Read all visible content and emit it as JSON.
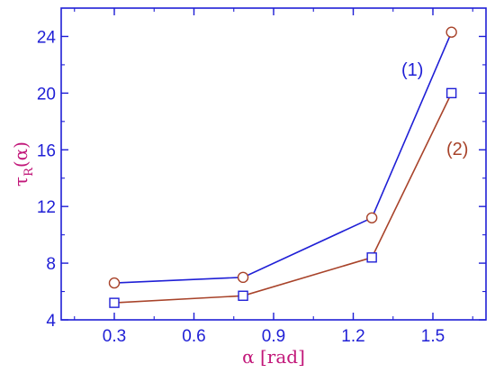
{
  "chart_data": {
    "type": "line",
    "title": "",
    "xlabel": "α [rad]",
    "ylabel": {
      "main": "τ",
      "subscript": "R",
      "argument": "(α)"
    },
    "xlim": [
      0.1,
      1.7
    ],
    "ylim": [
      4,
      26
    ],
    "x_ticks": [
      0.3,
      0.6,
      0.9,
      1.2,
      1.5
    ],
    "x_tick_labels": [
      "0.3",
      "0.6",
      "0.9",
      "1.2",
      "1.5"
    ],
    "y_ticks": [
      4,
      8,
      12,
      16,
      20,
      24
    ],
    "y_tick_labels": [
      "4",
      "8",
      "12",
      "16",
      "20",
      "24"
    ],
    "grid": false,
    "colors": {
      "axis": "#1f1fd6",
      "ylabel": "#c2187a"
    },
    "series": [
      {
        "name": "(1)",
        "line_color": "#1f1fd6",
        "marker": "circle",
        "marker_color": "#a8432a",
        "x": [
          0.3,
          0.785,
          1.27,
          1.57
        ],
        "y": [
          6.6,
          7.0,
          11.2,
          24.3
        ]
      },
      {
        "name": "(2)",
        "line_color": "#a8432a",
        "marker": "square",
        "marker_color": "#1f1fd6",
        "x": [
          0.3,
          0.785,
          1.27,
          1.57
        ],
        "y": [
          5.2,
          5.7,
          8.4,
          20.0
        ]
      }
    ]
  }
}
